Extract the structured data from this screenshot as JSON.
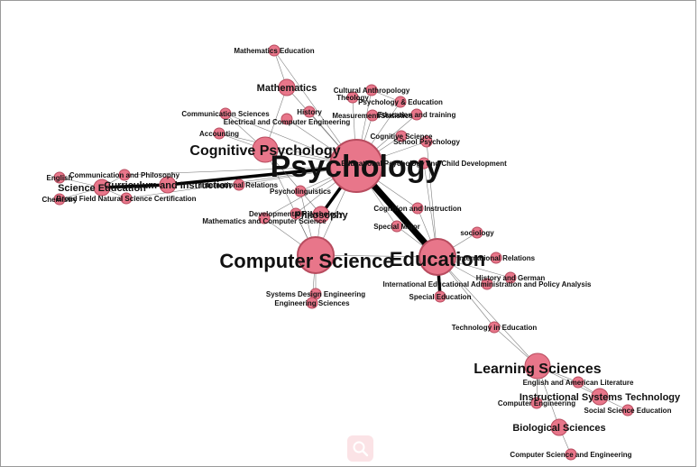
{
  "graph": {
    "colors": {
      "node_fill": "#e8768a",
      "node_stroke": "#b84c5f",
      "edge": "#555555",
      "label": "#111111"
    },
    "nodes": [
      {
        "id": "psychology",
        "label": "Psychology",
        "size": "xl"
      },
      {
        "id": "education",
        "label": "Education",
        "size": "lg"
      },
      {
        "id": "computer_science",
        "label": "Computer Science",
        "size": "lg"
      },
      {
        "id": "learning_sciences",
        "label": "Learning Sciences",
        "size": "md"
      },
      {
        "id": "cognitive_psychology",
        "label": "Cognitive Psychology",
        "size": "md"
      },
      {
        "id": "science_education",
        "label": "Science Education",
        "size": "sm"
      },
      {
        "id": "curriculum",
        "label": "Curriculum and Instruction",
        "size": "sm"
      },
      {
        "id": "mathematics",
        "label": "Mathematics",
        "size": "sm"
      },
      {
        "id": "instructional_sys",
        "label": "Instructional Systems Technology",
        "size": "sm"
      },
      {
        "id": "biological_sci",
        "label": "Biological Sciences",
        "size": "sm"
      },
      {
        "id": "philosophy",
        "label": "Philosophy",
        "size": "sm"
      },
      {
        "id": "math_ed",
        "label": "Mathematics Education",
        "size": "xs"
      },
      {
        "id": "comm_sci",
        "label": "Communication Sciences",
        "size": "xs"
      },
      {
        "id": "history",
        "label": "History",
        "size": "xs"
      },
      {
        "id": "eece",
        "label": "Electrical and Computer Engineering",
        "size": "xs"
      },
      {
        "id": "accounting",
        "label": "Accounting",
        "size": "xs"
      },
      {
        "id": "cult_anth",
        "label": "Cultural Anthropology",
        "size": "xs"
      },
      {
        "id": "theology",
        "label": "Theology",
        "size": "xs"
      },
      {
        "id": "psych_ed",
        "label": "Psychology & Education",
        "size": "xs"
      },
      {
        "id": "measurement",
        "label": "Measurement/Statistics",
        "size": "xs"
      },
      {
        "id": "ed_training",
        "label": "Education and training",
        "size": "xs"
      },
      {
        "id": "cog_sci",
        "label": "Cognitive Science",
        "size": "xs"
      },
      {
        "id": "school_psych",
        "label": "School Psychology",
        "size": "xs"
      },
      {
        "id": "ed_psych_child",
        "label": "Educational Psychology and Child Development",
        "size": "xs"
      },
      {
        "id": "english",
        "label": "English",
        "size": "xs"
      },
      {
        "id": "comm_phil",
        "label": "Communication and Philosophy",
        "size": "xs"
      },
      {
        "id": "intl_rel_a",
        "label": "International Relations",
        "size": "xs"
      },
      {
        "id": "chemistry",
        "label": "Chemistry",
        "size": "xs"
      },
      {
        "id": "broad_field",
        "label": "Broad Field Natural Science Certification",
        "size": "xs"
      },
      {
        "id": "psycholinguistics",
        "label": "Psycholinguistics",
        "size": "xs"
      },
      {
        "id": "dev_psych",
        "label": "Developmental Psychology",
        "size": "xs"
      },
      {
        "id": "math_cs",
        "label": "Mathematics and Computer Science",
        "size": "xs"
      },
      {
        "id": "cog_instr",
        "label": "Cognition and Instruction",
        "size": "xs"
      },
      {
        "id": "special_major",
        "label": "Special Major",
        "size": "xs"
      },
      {
        "id": "sociology",
        "label": "sociology",
        "size": "xs"
      },
      {
        "id": "intl_rel_b",
        "label": "International Relations",
        "size": "xs"
      },
      {
        "id": "hist_german",
        "label": "History and German",
        "size": "xs"
      },
      {
        "id": "intl_ed_admin",
        "label": "International Educational Administration and Policy Analysis",
        "size": "xs"
      },
      {
        "id": "special_ed",
        "label": "Special Education",
        "size": "xs"
      },
      {
        "id": "systems_design",
        "label": "Systems Design Engineering",
        "size": "xs"
      },
      {
        "id": "engineering_sci",
        "label": "Engineering Sciences",
        "size": "xs"
      },
      {
        "id": "tech_ed",
        "label": "Technology in Education",
        "size": "xs"
      },
      {
        "id": "eng_lit",
        "label": "English and American Literature",
        "size": "xs"
      },
      {
        "id": "comp_eng",
        "label": "Computer Engineering",
        "size": "xs"
      },
      {
        "id": "soc_sci_ed",
        "label": "Social Science Education",
        "size": "xs"
      },
      {
        "id": "cs_eng",
        "label": "Computer Science and Engineering",
        "size": "xs"
      }
    ],
    "edges": [
      {
        "source": "psychology",
        "target": "education",
        "weight": 3
      },
      {
        "source": "curriculum",
        "target": "psychology",
        "weight": 2
      },
      {
        "source": "science_education",
        "target": "curriculum",
        "weight": 2
      },
      {
        "source": "education",
        "target": "special_ed",
        "weight": 2
      },
      {
        "source": "psychology",
        "target": "philosophy",
        "weight": 2
      },
      {
        "source": "psychology",
        "target": "cognitive_psychology",
        "weight": 1
      },
      {
        "source": "psychology",
        "target": "mathematics",
        "weight": 1
      },
      {
        "source": "psychology",
        "target": "math_ed",
        "weight": 1
      },
      {
        "source": "psychology",
        "target": "history",
        "weight": 1
      },
      {
        "source": "psychology",
        "target": "comm_sci",
        "weight": 1
      },
      {
        "source": "psychology",
        "target": "eece",
        "weight": 1
      },
      {
        "source": "psychology",
        "target": "accounting",
        "weight": 1
      },
      {
        "source": "psychology",
        "target": "cult_anth",
        "weight": 1
      },
      {
        "source": "psychology",
        "target": "theology",
        "weight": 1
      },
      {
        "source": "psychology",
        "target": "psych_ed",
        "weight": 1
      },
      {
        "source": "psychology",
        "target": "measurement",
        "weight": 1
      },
      {
        "source": "psychology",
        "target": "ed_training",
        "weight": 1
      },
      {
        "source": "psychology",
        "target": "cog_sci",
        "weight": 1
      },
      {
        "source": "psychology",
        "target": "school_psych",
        "weight": 1
      },
      {
        "source": "psychology",
        "target": "ed_psych_child",
        "weight": 1
      },
      {
        "source": "psychology",
        "target": "intl_rel_a",
        "weight": 1
      },
      {
        "source": "psychology",
        "target": "psycholinguistics",
        "weight": 1
      },
      {
        "source": "psychology",
        "target": "dev_psych",
        "weight": 1
      },
      {
        "source": "psychology",
        "target": "math_cs",
        "weight": 1
      },
      {
        "source": "psychology",
        "target": "cog_instr",
        "weight": 1
      },
      {
        "source": "psychology",
        "target": "special_major",
        "weight": 1
      },
      {
        "source": "psychology",
        "target": "computer_science",
        "weight": 1
      },
      {
        "source": "psychology",
        "target": "broad_field",
        "weight": 1
      },
      {
        "source": "psychology",
        "target": "comm_phil",
        "weight": 1
      },
      {
        "source": "science_education",
        "target": "english",
        "weight": 1
      },
      {
        "source": "science_education",
        "target": "comm_phil",
        "weight": 1
      },
      {
        "source": "science_education",
        "target": "chemistry",
        "weight": 1
      },
      {
        "source": "science_education",
        "target": "broad_field",
        "weight": 1
      },
      {
        "source": "mathematics",
        "target": "math_ed",
        "weight": 1
      },
      {
        "source": "mathematics",
        "target": "cognitive_psychology",
        "weight": 1
      },
      {
        "source": "cognitive_psychology",
        "target": "accounting",
        "weight": 1
      },
      {
        "source": "cognitive_psychology",
        "target": "comm_sci",
        "weight": 1
      },
      {
        "source": "cognitive_psychology",
        "target": "computer_science",
        "weight": 1
      },
      {
        "source": "cognitive_psychology",
        "target": "philosophy",
        "weight": 1
      },
      {
        "source": "computer_science",
        "target": "philosophy",
        "weight": 1
      },
      {
        "source": "computer_science",
        "target": "dev_psych",
        "weight": 1
      },
      {
        "source": "computer_science",
        "target": "math_cs",
        "weight": 1
      },
      {
        "source": "computer_science",
        "target": "psycholinguistics",
        "weight": 1
      },
      {
        "source": "computer_science",
        "target": "systems_design",
        "weight": 1
      },
      {
        "source": "computer_science",
        "target": "engineering_sci",
        "weight": 1
      },
      {
        "source": "computer_science",
        "target": "education",
        "weight": 1
      },
      {
        "source": "education",
        "target": "sociology",
        "weight": 1
      },
      {
        "source": "education",
        "target": "intl_rel_b",
        "weight": 1
      },
      {
        "source": "education",
        "target": "hist_german",
        "weight": 1
      },
      {
        "source": "education",
        "target": "intl_ed_admin",
        "weight": 1
      },
      {
        "source": "education",
        "target": "special_major",
        "weight": 1
      },
      {
        "source": "education",
        "target": "cog_instr",
        "weight": 1
      },
      {
        "source": "education",
        "target": "tech_ed",
        "weight": 1
      },
      {
        "source": "education",
        "target": "learning_sciences",
        "weight": 1
      },
      {
        "source": "education",
        "target": "ed_psych_child",
        "weight": 1
      },
      {
        "source": "education",
        "target": "school_psych",
        "weight": 1
      },
      {
        "source": "tech_ed",
        "target": "learning_sciences",
        "weight": 1
      },
      {
        "source": "learning_sciences",
        "target": "instructional_sys",
        "weight": 1
      },
      {
        "source": "learning_sciences",
        "target": "eng_lit",
        "weight": 1
      },
      {
        "source": "learning_sciences",
        "target": "comp_eng",
        "weight": 1
      },
      {
        "source": "learning_sciences",
        "target": "biological_sci",
        "weight": 1
      },
      {
        "source": "instructional_sys",
        "target": "soc_sci_ed",
        "weight": 1
      },
      {
        "source": "instructional_sys",
        "target": "eng_lit",
        "weight": 1
      },
      {
        "source": "biological_sci",
        "target": "cs_eng",
        "weight": 1
      },
      {
        "source": "psych_ed",
        "target": "cult_anth",
        "weight": 1
      }
    ]
  },
  "toolbar": {
    "zoom_icon": "magnifier-icon"
  }
}
